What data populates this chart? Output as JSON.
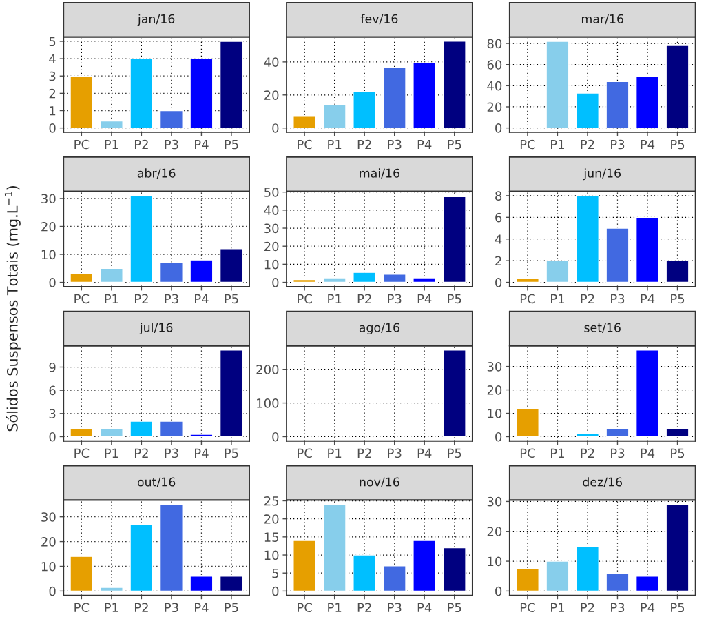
{
  "chart_data": [
    {
      "type": "bar",
      "title": "jan/16",
      "ylabel": "Sólidos Suspensos Totais (mg.L$^{−1}$)",
      "categories": [
        "PC",
        "P1",
        "P2",
        "P3",
        "P4",
        "P5"
      ],
      "colors": [
        "#e69f00",
        "#87ceeb",
        "#00bfff",
        "#4169e1",
        "#0000ff",
        "#000080"
      ],
      "values": [
        3,
        0.4,
        4,
        1,
        4,
        5
      ],
      "ylim": [
        -0.25,
        5.25
      ],
      "yticks": [
        0,
        1,
        2,
        3,
        4,
        5
      ],
      "grid": true
    },
    {
      "type": "bar",
      "title": "fev/16",
      "categories": [
        "PC",
        "P1",
        "P2",
        "P3",
        "P4",
        "P5"
      ],
      "colors": [
        "#e69f00",
        "#87ceeb",
        "#00bfff",
        "#4169e1",
        "#0000ff",
        "#000080"
      ],
      "values": [
        7.5,
        14,
        22,
        36.5,
        39.5,
        52.5
      ],
      "ylim": [
        -2.6,
        55.1
      ],
      "yticks": [
        0,
        20,
        40
      ],
      "grid": true
    },
    {
      "type": "bar",
      "title": "mar/16",
      "categories": [
        "PC",
        "P1",
        "P2",
        "P3",
        "P4",
        "P5"
      ],
      "colors": [
        "#e69f00",
        "#87ceeb",
        "#00bfff",
        "#4169e1",
        "#0000ff",
        "#000080"
      ],
      "values": [
        null,
        82,
        33,
        44,
        49,
        78
      ],
      "ylim": [
        -4.1,
        86.1
      ],
      "yticks": [
        0,
        20,
        40,
        60,
        80
      ],
      "grid": true
    },
    {
      "type": "bar",
      "title": "abr/16",
      "categories": [
        "PC",
        "P1",
        "P2",
        "P3",
        "P4",
        "P5"
      ],
      "colors": [
        "#e69f00",
        "#87ceeb",
        "#00bfff",
        "#4169e1",
        "#0000ff",
        "#000080"
      ],
      "values": [
        3,
        5,
        31,
        7,
        8,
        12
      ],
      "ylim": [
        -1.55,
        32.55
      ],
      "yticks": [
        0,
        10,
        20,
        30
      ],
      "grid": true
    },
    {
      "type": "bar",
      "title": "mai/16",
      "categories": [
        "PC",
        "P1",
        "P2",
        "P3",
        "P4",
        "P5"
      ],
      "colors": [
        "#e69f00",
        "#87ceeb",
        "#00bfff",
        "#4169e1",
        "#0000ff",
        "#000080"
      ],
      "values": [
        1.5,
        2.5,
        5.5,
        4.5,
        2.5,
        47.5
      ],
      "ylim": [
        -2.4,
        50.4
      ],
      "yticks": [
        0,
        10,
        20,
        30,
        40,
        50
      ],
      "grid": true
    },
    {
      "type": "bar",
      "title": "jun/16",
      "categories": [
        "PC",
        "P1",
        "P2",
        "P3",
        "P4",
        "P5"
      ],
      "colors": [
        "#e69f00",
        "#87ceeb",
        "#00bfff",
        "#4169e1",
        "#0000ff",
        "#000080"
      ],
      "values": [
        0.4,
        2,
        8,
        5,
        6,
        2
      ],
      "ylim": [
        -0.4,
        8.4
      ],
      "yticks": [
        0,
        2,
        4,
        6,
        8
      ],
      "grid": true
    },
    {
      "type": "bar",
      "title": "jul/16",
      "categories": [
        "PC",
        "P1",
        "P2",
        "P3",
        "P4",
        "P5"
      ],
      "colors": [
        "#e69f00",
        "#87ceeb",
        "#00bfff",
        "#4169e1",
        "#0000ff",
        "#000080"
      ],
      "values": [
        1,
        1,
        2,
        2,
        0.3,
        11.2
      ],
      "ylim": [
        -0.56,
        11.76
      ],
      "yticks": [
        0,
        3,
        6,
        9
      ],
      "grid": true
    },
    {
      "type": "bar",
      "title": "ago/16",
      "categories": [
        "PC",
        "P1",
        "P2",
        "P3",
        "P4",
        "P5"
      ],
      "colors": [
        "#e69f00",
        "#87ceeb",
        "#00bfff",
        "#4169e1",
        "#0000ff",
        "#000080"
      ],
      "values": [
        null,
        null,
        null,
        null,
        null,
        257
      ],
      "ylim": [
        -12.85,
        269.85
      ],
      "yticks": [
        0,
        100,
        200
      ],
      "grid": true
    },
    {
      "type": "bar",
      "title": "set/16",
      "categories": [
        "PC",
        "P1",
        "P2",
        "P3",
        "P4",
        "P5"
      ],
      "colors": [
        "#e69f00",
        "#87ceeb",
        "#00bfff",
        "#4169e1",
        "#0000ff",
        "#000080"
      ],
      "values": [
        12,
        null,
        1.5,
        3.5,
        37,
        3.5
      ],
      "ylim": [
        -1.85,
        38.85
      ],
      "yticks": [
        0,
        10,
        20,
        30
      ],
      "grid": true
    },
    {
      "type": "bar",
      "title": "out/16",
      "categories": [
        "PC",
        "P1",
        "P2",
        "P3",
        "P4",
        "P5"
      ],
      "colors": [
        "#e69f00",
        "#87ceeb",
        "#00bfff",
        "#4169e1",
        "#0000ff",
        "#000080"
      ],
      "values": [
        14,
        1.5,
        27,
        35,
        6,
        6
      ],
      "ylim": [
        -1.75,
        36.75
      ],
      "yticks": [
        0,
        10,
        20,
        30
      ],
      "grid": true
    },
    {
      "type": "bar",
      "title": "nov/16",
      "categories": [
        "PC",
        "P1",
        "P2",
        "P3",
        "P4",
        "P5"
      ],
      "colors": [
        "#e69f00",
        "#87ceeb",
        "#00bfff",
        "#4169e1",
        "#0000ff",
        "#000080"
      ],
      "values": [
        14,
        24,
        10,
        7,
        14,
        12
      ],
      "ylim": [
        -1.2,
        25.2
      ],
      "yticks": [
        0,
        5,
        10,
        15,
        20,
        25
      ],
      "grid": true
    },
    {
      "type": "bar",
      "title": "dez/16",
      "categories": [
        "PC",
        "P1",
        "P2",
        "P3",
        "P4",
        "P5"
      ],
      "colors": [
        "#e69f00",
        "#87ceeb",
        "#00bfff",
        "#4169e1",
        "#0000ff",
        "#000080"
      ],
      "values": [
        7.5,
        10,
        15,
        6,
        5,
        29
      ],
      "ylim": [
        -1.45,
        30.45
      ],
      "yticks": [
        0,
        10,
        20,
        30
      ],
      "grid": true
    }
  ]
}
